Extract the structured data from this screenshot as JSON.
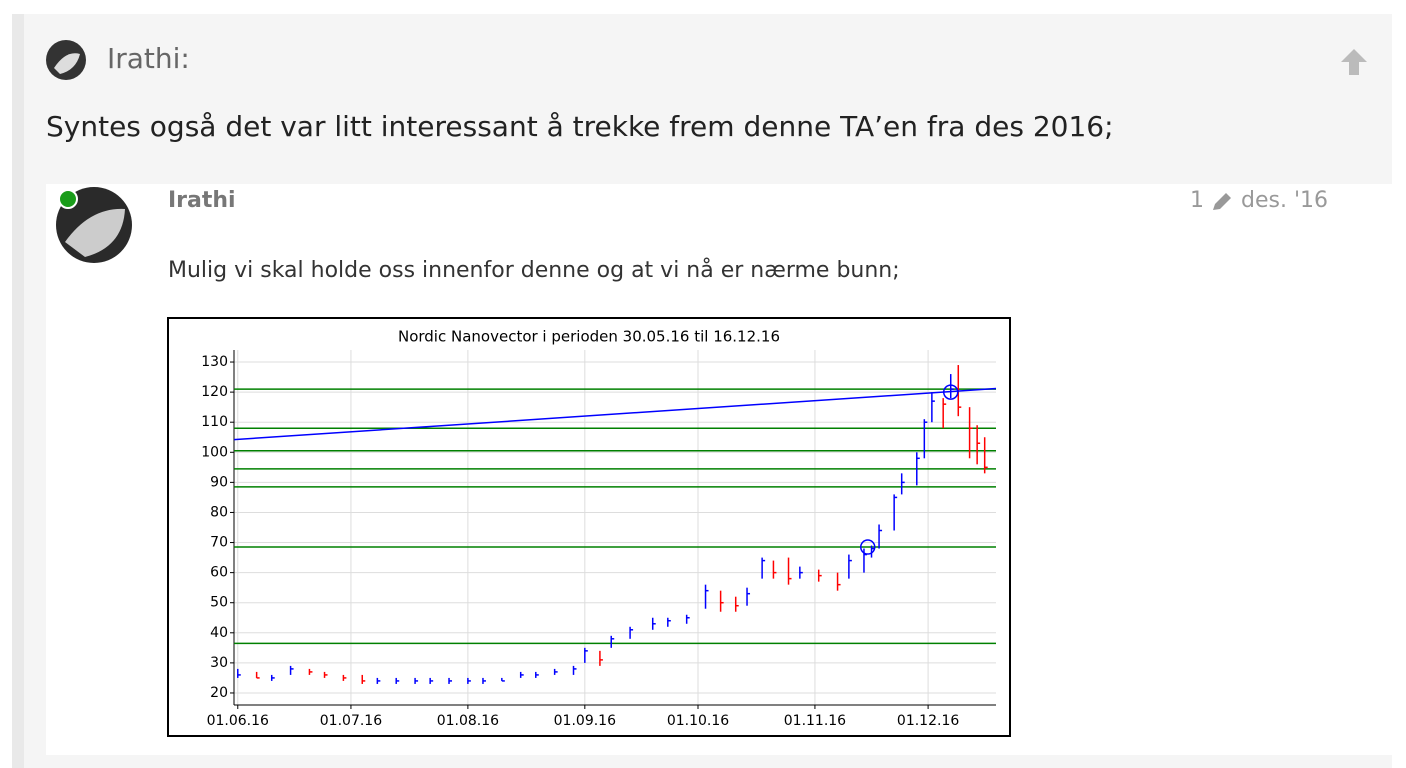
{
  "post": {
    "author": "Irathi:",
    "text": "Syntes også det var litt interessant å trekke frem denne TA’en fra des 2016;"
  },
  "quote": {
    "author": "Irathi",
    "edits": "1",
    "date": "des. '16",
    "text": "Mulig vi skal holde oss innenfor denne og at vi nå er nærme bunn;"
  },
  "chart_data": {
    "type": "hlc",
    "title": "Nordic Nanovector i perioden 30.05.16 til 16.12.16",
    "x": [
      "01.06.16",
      "06.06.16",
      "10.06.16",
      "15.06.16",
      "20.06.16",
      "24.06.16",
      "29.06.16",
      "04.07.16",
      "08.07.16",
      "13.07.16",
      "18.07.16",
      "22.07.16",
      "27.07.16",
      "01.08.16",
      "05.08.16",
      "10.08.16",
      "15.08.16",
      "19.08.16",
      "24.08.16",
      "29.08.16",
      "01.09.16",
      "05.09.16",
      "08.09.16",
      "13.09.16",
      "19.09.16",
      "23.09.16",
      "28.09.16",
      "03.10.16",
      "07.10.16",
      "11.10.16",
      "14.10.16",
      "18.10.16",
      "21.10.16",
      "25.10.16",
      "28.10.16",
      "02.11.16",
      "07.11.16",
      "10.11.16",
      "14.11.16",
      "16.11.16",
      "18.11.16",
      "22.11.16",
      "24.11.16",
      "28.11.16",
      "30.11.16",
      "02.12.16",
      "05.12.16",
      "07.12.16",
      "09.12.16",
      "12.12.16",
      "14.12.16",
      "16.12.16"
    ],
    "high": [
      28,
      27,
      26,
      29,
      28,
      27,
      26,
      26,
      25,
      25,
      25,
      25,
      25,
      25,
      25,
      25,
      27,
      27,
      28,
      29,
      35,
      34,
      39,
      42,
      45,
      45,
      46,
      56,
      54,
      52,
      55,
      65,
      64,
      65,
      62,
      61,
      60,
      66,
      68,
      69,
      76,
      86,
      93,
      100,
      111,
      120,
      118,
      126,
      129,
      115,
      109,
      105
    ],
    "low": [
      25,
      25,
      24,
      26,
      26,
      25,
      24,
      23,
      23,
      23,
      23,
      23,
      23,
      23,
      23,
      24,
      25,
      25,
      26,
      26,
      30,
      29,
      35,
      38,
      41,
      42,
      43,
      48,
      47,
      47,
      49,
      58,
      58,
      56,
      58,
      57,
      54,
      58,
      60,
      65,
      68,
      74,
      86,
      89,
      98,
      110,
      108,
      118,
      112,
      98,
      96,
      93
    ],
    "close": [
      26,
      25,
      25,
      28,
      27,
      26,
      25,
      24,
      24,
      24,
      24,
      24,
      24,
      24,
      24,
      24,
      26,
      26,
      27,
      28,
      34,
      31,
      38,
      41,
      43,
      44,
      45,
      54,
      50,
      49,
      53,
      64,
      60,
      58,
      60,
      59,
      56,
      64,
      66,
      68,
      74,
      85,
      90,
      98,
      110,
      117,
      116,
      121,
      115,
      108,
      103,
      95
    ],
    "up_color": "#0000ff",
    "down_color": "#ff0000",
    "levels": [
      121,
      108,
      100.5,
      94.5,
      88.5,
      68.5,
      36.5
    ],
    "level_color": "#008000",
    "trendline": {
      "x": [
        "31.05.16",
        "19.12.16"
      ],
      "values": [
        104.2,
        121.2
      ],
      "color": "#0000ff"
    },
    "markers": {
      "x": [
        "07.12.16",
        "15.11.16"
      ],
      "values": [
        120,
        68.5
      ]
    },
    "xlim": [
      "31.05.16",
      "19.12.16"
    ],
    "ylim": [
      16,
      134
    ],
    "xticks": [
      "01.06.16",
      "01.07.16",
      "01.08.16",
      "01.09.16",
      "01.10.16",
      "01.11.16",
      "01.12.16"
    ],
    "yticks": [
      20,
      30,
      40,
      50,
      60,
      70,
      80,
      90,
      100,
      110,
      120,
      130
    ],
    "grid": true
  }
}
